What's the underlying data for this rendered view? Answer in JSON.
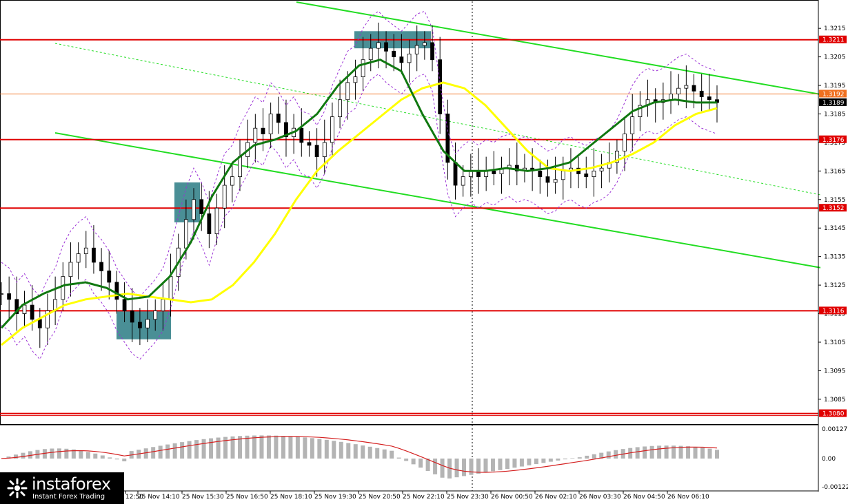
{
  "chart_data": [
    {
      "type": "candlestick",
      "ylim": [
        1.3077,
        1.3223
      ],
      "yticks": [
        "1.3215",
        "1.3205",
        "1.3195",
        "1.3185",
        "1.3175",
        "1.3165",
        "1.3155",
        "1.3145",
        "1.3135",
        "1.3125",
        "1.3115",
        "1.3105",
        "1.3095",
        "1.3085"
      ],
      "xticks": [
        "12:50",
        "25 Nov 14:10",
        "25 Nov 15:30",
        "25 Nov 16:50",
        "25 Nov 18:10",
        "25 Nov 19:30",
        "25 Nov 20:50",
        "25 Nov 22:10",
        "25 Nov 23:30",
        "26 Nov 00:50",
        "26 Nov 02:10",
        "26 Nov 03:30",
        "26 Nov 04:50",
        "26 Nov 06:10"
      ],
      "levels": [
        {
          "value": 1.3211,
          "label": "1.3211",
          "color": "#e00000"
        },
        {
          "value": 1.3192,
          "label": "1.3192",
          "color": "#f07020"
        },
        {
          "value": 1.3189,
          "label": "1.3189",
          "color": "#000000"
        },
        {
          "value": 1.3176,
          "label": "1.3176",
          "color": "#e00000"
        },
        {
          "value": 1.3152,
          "label": "1.3152",
          "color": "#e00000"
        },
        {
          "value": 1.3116,
          "label": "1.3116",
          "color": "#e00000"
        },
        {
          "value": 1.308,
          "label": "1.3080",
          "color": "#e00000"
        }
      ],
      "close_path": [
        1.3122,
        1.312,
        1.3115,
        1.3118,
        1.3113,
        1.311,
        1.3116,
        1.312,
        1.3128,
        1.3133,
        1.3136,
        1.3138,
        1.3133,
        1.313,
        1.3126,
        1.312,
        1.3116,
        1.3112,
        1.311,
        1.3113,
        1.3116,
        1.312,
        1.3128,
        1.3138,
        1.3148,
        1.3155,
        1.315,
        1.3143,
        1.3152,
        1.316,
        1.3163,
        1.317,
        1.3175,
        1.318,
        1.3178,
        1.3185,
        1.3182,
        1.3177,
        1.318,
        1.3175,
        1.3174,
        1.317,
        1.3175,
        1.3184,
        1.319,
        1.3196,
        1.3198,
        1.3204,
        1.3208,
        1.321,
        1.3207,
        1.3205,
        1.3203,
        1.3206,
        1.3209,
        1.321,
        1.3204,
        1.3185,
        1.3168,
        1.316,
        1.3163,
        1.3165,
        1.3163,
        1.3165,
        1.3164,
        1.3166,
        1.3167,
        1.3165,
        1.3166,
        1.3165,
        1.3163,
        1.3161,
        1.3162,
        1.3165,
        1.3166,
        1.3164,
        1.3163,
        1.3165,
        1.3166,
        1.3168,
        1.3172,
        1.3178,
        1.3184,
        1.3188,
        1.319,
        1.3189,
        1.319,
        1.3192,
        1.3194,
        1.3195,
        1.3193,
        1.3191,
        1.319,
        1.3189
      ],
      "yellow_ma": [
        1.3104,
        1.311,
        1.3114,
        1.3118,
        1.312,
        1.3121,
        1.3122,
        1.3121,
        1.312,
        1.3119,
        1.312,
        1.3125,
        1.3133,
        1.3143,
        1.3155,
        1.3165,
        1.3172,
        1.3178,
        1.3184,
        1.319,
        1.3194,
        1.3196,
        1.3194,
        1.3188,
        1.318,
        1.3172,
        1.3166,
        1.3165,
        1.3166,
        1.3168,
        1.3171,
        1.3175,
        1.3181,
        1.3185,
        1.3187
      ],
      "green_ma": [
        1.311,
        1.3118,
        1.3122,
        1.3125,
        1.3126,
        1.3124,
        1.312,
        1.3121,
        1.3128,
        1.314,
        1.3156,
        1.3168,
        1.3174,
        1.3176,
        1.3179,
        1.3185,
        1.3195,
        1.3202,
        1.3204,
        1.32,
        1.3185,
        1.3172,
        1.3165,
        1.3165,
        1.3166,
        1.3165,
        1.3166,
        1.3168,
        1.3174,
        1.318,
        1.3186,
        1.3189,
        1.319,
        1.3189,
        1.3189
      ],
      "macd_axis": [
        "0.00127",
        "0.00",
        "-0.00122"
      ],
      "zones": [
        {
          "name": "buy-zone-low",
          "price_top": 1.3116,
          "price_bottom": 1.3106
        },
        {
          "name": "breakout-zone",
          "price_top": 1.3161,
          "price_bottom": 1.3147
        },
        {
          "name": "sell-zone-high",
          "price_top": 1.3214,
          "price_bottom": 1.3208
        }
      ]
    }
  ],
  "colors": {
    "support_resistance": "#e00000",
    "channel": "#22dd22",
    "yellow_ma": "#ffff00",
    "green_ma": "#107810",
    "zone": "#4a8f96",
    "macd_bars": "#b4b4b4",
    "macd_signal": "#d42020"
  },
  "logo": {
    "brand": "instaforex",
    "tagline": "Instant Forex Trading"
  }
}
